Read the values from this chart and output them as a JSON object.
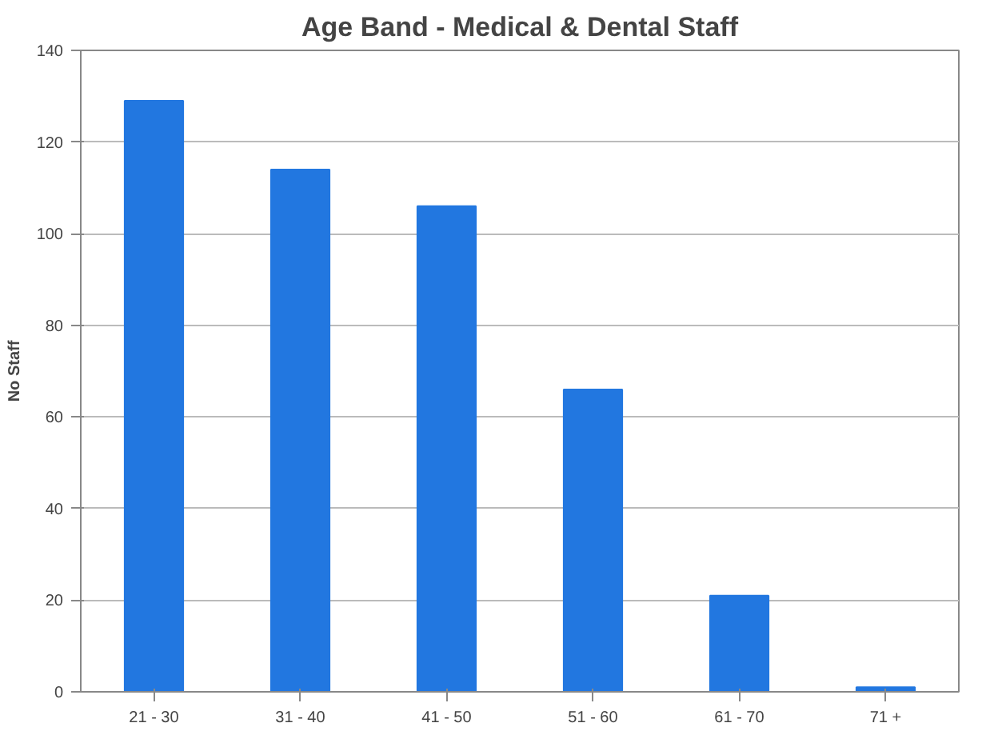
{
  "chart_data": {
    "type": "bar",
    "title": "Age Band - Medical & Dental Staff",
    "ylabel": "No Staff",
    "categories": [
      "21 - 30",
      "31 - 40",
      "41 - 50",
      "51 - 60",
      "61 - 70",
      "71 +"
    ],
    "values": [
      129,
      114,
      106,
      66,
      21,
      1
    ],
    "color": "#2277e0",
    "ylim": [
      0,
      140
    ],
    "yticks": [
      0,
      20,
      40,
      60,
      80,
      100,
      120,
      140
    ],
    "grid": "y"
  }
}
